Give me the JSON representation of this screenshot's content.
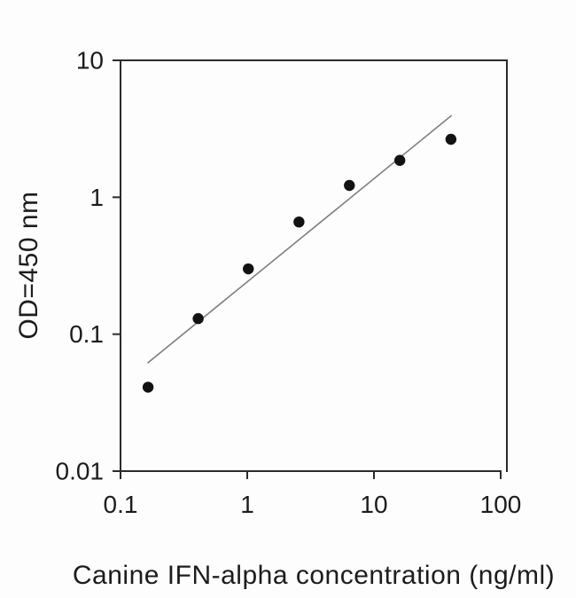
{
  "figure": {
    "background_color": "#fdfdfd",
    "axis_color": "#2b2b2b",
    "text_color": "#1c1c1c",
    "fit_line_color": "#7d7d7d",
    "marker_color": "#121212"
  },
  "chart_data": {
    "type": "scatter",
    "title": "",
    "xlabel": "Canine IFN-alpha concentration (ng/ml)",
    "ylabel": "OD=450 nm",
    "x_scale": "log",
    "y_scale": "log",
    "xlim": [
      0.1,
      100
    ],
    "ylim": [
      0.01,
      10
    ],
    "x_ticks": [
      0.1,
      1,
      10,
      100
    ],
    "x_tick_labels": [
      "0.1",
      "1",
      "10",
      "100"
    ],
    "y_ticks": [
      0.01,
      0.1,
      1,
      10
    ],
    "y_tick_labels": [
      "0.01",
      "0.1",
      "1",
      "10"
    ],
    "grid": false,
    "legend": null,
    "series": [
      {
        "name": "standard-curve-points",
        "type": "scatter",
        "marker": "filled-circle",
        "points": [
          {
            "x": 0.165,
            "y": 0.041
          },
          {
            "x": 0.41,
            "y": 0.13
          },
          {
            "x": 1.02,
            "y": 0.3
          },
          {
            "x": 2.56,
            "y": 0.66
          },
          {
            "x": 6.4,
            "y": 1.22
          },
          {
            "x": 16.0,
            "y": 1.86
          },
          {
            "x": 40.5,
            "y": 2.65
          }
        ]
      },
      {
        "name": "fit-line",
        "type": "line",
        "points": [
          {
            "x": 0.165,
            "y": 0.062
          },
          {
            "x": 40.6,
            "y": 3.93
          }
        ]
      }
    ]
  }
}
